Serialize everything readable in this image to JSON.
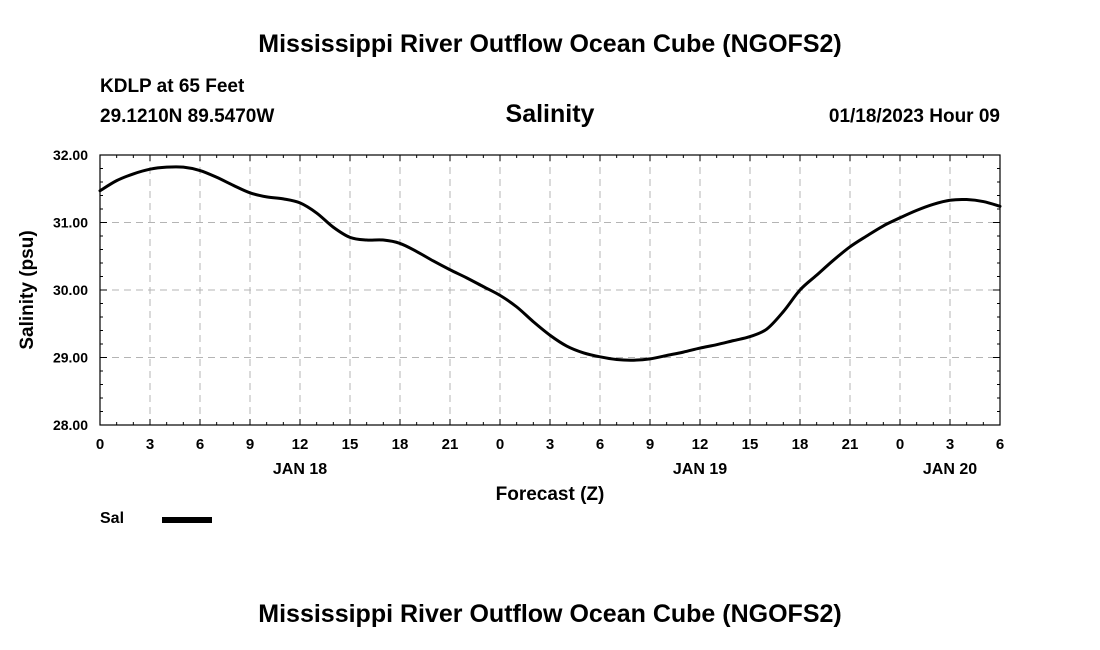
{
  "title": "Mississippi River Outflow Ocean Cube (NGOFS2)",
  "station": {
    "name": "KDLP at 65 Feet",
    "coords": "29.1210N  89.5470W"
  },
  "parameter": "Salinity",
  "timestamp": "01/18/2023 Hour 09",
  "legend": {
    "label": "Sal"
  },
  "bottom_title": "Mississippi River Outflow Ocean Cube (NGOFS2)",
  "chart_data": {
    "type": "line",
    "title": "Salinity",
    "xlabel": "Forecast (Z)",
    "ylabel": "Salinity (psu)",
    "xlim": [
      0,
      54
    ],
    "ylim": [
      28,
      32
    ],
    "grid": true,
    "x_ticks": [
      0,
      3,
      6,
      9,
      12,
      15,
      18,
      21,
      24,
      27,
      30,
      33,
      36,
      39,
      42,
      45,
      48,
      51,
      54
    ],
    "x_tick_labels": [
      "0",
      "3",
      "6",
      "9",
      "12",
      "15",
      "18",
      "21",
      "0",
      "3",
      "6",
      "9",
      "12",
      "15",
      "18",
      "21",
      "0",
      "3",
      "6"
    ],
    "date_labels": [
      {
        "x": 12,
        "label": "JAN 18"
      },
      {
        "x": 36,
        "label": "JAN 19"
      },
      {
        "x": 51,
        "label": "JAN 20"
      }
    ],
    "y_ticks": [
      28,
      29,
      30,
      31,
      32
    ],
    "y_tick_labels": [
      "28.00",
      "29.00",
      "30.00",
      "31.00",
      "32.00"
    ],
    "series": [
      {
        "name": "Sal",
        "x": [
          0,
          1,
          2,
          3,
          4,
          5,
          6,
          7,
          8,
          9,
          10,
          11,
          12,
          13,
          14,
          15,
          16,
          17,
          18,
          19,
          20,
          21,
          22,
          23,
          24,
          25,
          26,
          27,
          28,
          29,
          30,
          31,
          32,
          33,
          34,
          35,
          36,
          37,
          38,
          39,
          40,
          41,
          42,
          43,
          44,
          45,
          46,
          47,
          48,
          49,
          50,
          51,
          52,
          53,
          54
        ],
        "values": [
          31.47,
          31.62,
          31.72,
          31.79,
          31.82,
          31.82,
          31.77,
          31.67,
          31.55,
          31.44,
          31.38,
          31.35,
          31.29,
          31.14,
          30.93,
          30.78,
          30.74,
          30.74,
          30.69,
          30.57,
          30.43,
          30.3,
          30.18,
          30.05,
          29.92,
          29.75,
          29.53,
          29.33,
          29.17,
          29.07,
          29.01,
          28.97,
          28.96,
          28.98,
          29.03,
          29.08,
          29.14,
          29.19,
          29.25,
          29.31,
          29.42,
          29.68,
          30.0,
          30.22,
          30.44,
          30.64,
          30.8,
          30.95,
          31.07,
          31.18,
          31.27,
          31.33,
          31.34,
          31.31,
          31.24
        ]
      }
    ]
  }
}
